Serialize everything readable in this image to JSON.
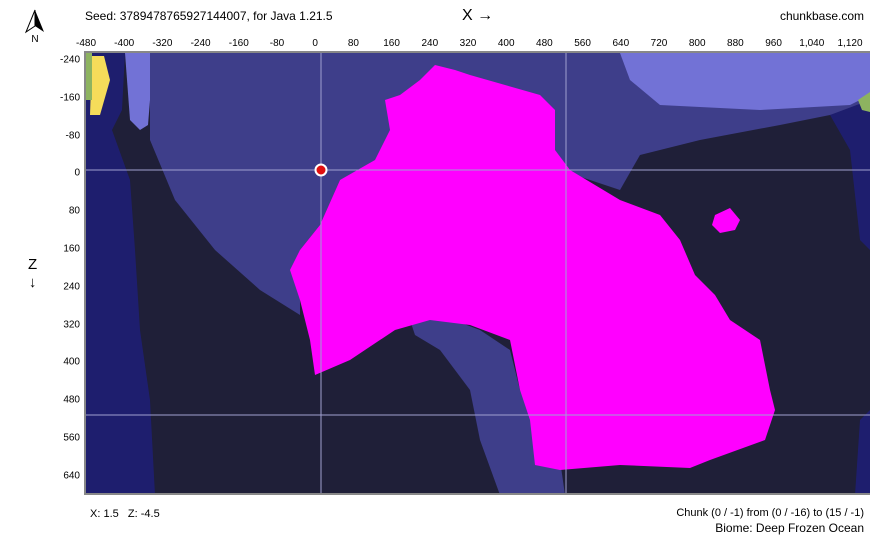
{
  "header": {
    "seed": "Seed: 3789478765927144007, for Java 1.21.5",
    "x_axis": "X →",
    "site": "chunkbase.com",
    "z_axis": "Z",
    "z_arrow": "↓",
    "compass": "N"
  },
  "x_ticks": [
    "-480",
    "-400",
    "-320",
    "-240",
    "-160",
    "-80",
    "0",
    "80",
    "160",
    "240",
    "320",
    "400",
    "480",
    "560",
    "640",
    "720",
    "800",
    "880",
    "960",
    "1,040",
    "1,120"
  ],
  "z_ticks": [
    "-240",
    "-160",
    "-80",
    "0",
    "80",
    "160",
    "240",
    "320",
    "400",
    "480",
    "560",
    "640"
  ],
  "footer": {
    "coords": "X: 1.5   Z: -4.5",
    "chunk": "Chunk (0 / -1) from (0 / -16) to (15 / -1)",
    "biome": "Biome: Deep Frozen Ocean"
  },
  "colors": {
    "deep_dark": "#1f1f38",
    "ocean": "#3e3e8a",
    "frozen_ocean": "#7272d6",
    "deep_ocean": "#1e1e6e",
    "highlight": "#ff00ff",
    "beach": "#f5dc5a",
    "plains": "#8db360",
    "marker": "#e01010"
  }
}
